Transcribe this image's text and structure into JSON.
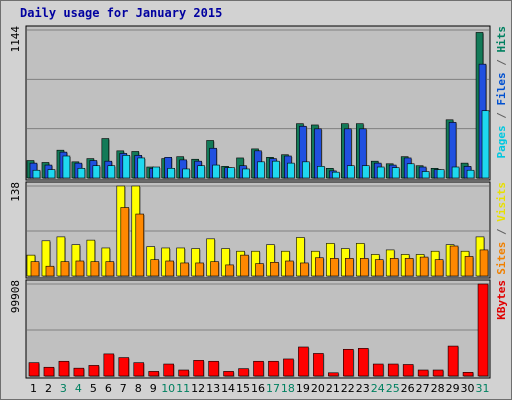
{
  "chart_data": {
    "type": "bar",
    "title": "Daily usage for January 2015",
    "categories": [
      "1",
      "2",
      "3",
      "4",
      "5",
      "6",
      "7",
      "8",
      "9",
      "10",
      "11",
      "12",
      "13",
      "14",
      "15",
      "16",
      "17",
      "18",
      "19",
      "20",
      "21",
      "22",
      "23",
      "24",
      "25",
      "26",
      "27",
      "28",
      "29",
      "30",
      "31"
    ],
    "weekend_days": [
      "3",
      "4",
      "10",
      "11",
      "17",
      "18",
      "24",
      "25",
      "31"
    ],
    "panels": [
      {
        "id": "hits",
        "ymax": 1144,
        "ytick": "1144",
        "right_labels": [
          {
            "text": "Pages",
            "color": "#00c8e0"
          },
          {
            "text": " / ",
            "color": "#606060"
          },
          {
            "text": "Files",
            "color": "#0050d0"
          },
          {
            "text": " / ",
            "color": "#606060"
          },
          {
            "text": "Hits",
            "color": "#008060"
          }
        ],
        "series": [
          {
            "name": "Hits",
            "color": "#137a58",
            "values": [
              135,
              120,
              215,
              125,
              150,
              305,
              210,
              205,
              85,
              150,
              165,
              145,
              290,
              90,
              155,
              225,
              160,
              180,
              420,
              410,
              75,
              420,
              420,
              130,
              110,
              165,
              95,
              75,
              450,
              115,
              1125
            ]
          },
          {
            "name": "Files",
            "color": "#2050e0",
            "values": [
              115,
              100,
              200,
              115,
              135,
              130,
              190,
              175,
              75,
              160,
              140,
              130,
              230,
              80,
              95,
              210,
              150,
              170,
              400,
              380,
              55,
              380,
              380,
              115,
              100,
              155,
              85,
              65,
              430,
              90,
              880
            ]
          },
          {
            "name": "Pages",
            "color": "#1ed8f0",
            "values": [
              60,
              65,
              170,
              75,
              95,
              95,
              175,
              155,
              85,
              75,
              70,
              95,
              100,
              80,
              70,
              125,
              130,
              115,
              125,
              90,
              45,
              95,
              95,
              85,
              80,
              110,
              50,
              65,
              85,
              60,
              520
            ]
          }
        ]
      },
      {
        "id": "visits",
        "ymax": 138,
        "ytick": "138",
        "right_labels": [
          {
            "text": "Sites",
            "color": "#f08000"
          },
          {
            "text": " / ",
            "color": "#606060"
          },
          {
            "text": "Visits",
            "color": "#e8e000"
          }
        ],
        "series": [
          {
            "name": "Visits",
            "color": "#ffff00",
            "values": [
              32,
              54,
              60,
              48,
              55,
              43,
              138,
              138,
              45,
              43,
              43,
              42,
              57,
              42,
              38,
              38,
              48,
              38,
              59,
              38,
              50,
              42,
              50,
              33,
              40,
              33,
              33,
              38,
              48,
              38,
              60
            ]
          },
          {
            "name": "Sites",
            "color": "#ff8800",
            "values": [
              22,
              15,
              22,
              23,
              22,
              22,
              105,
              95,
              25,
              23,
              20,
              20,
              22,
              17,
              32,
              19,
              21,
              23,
              20,
              28,
              27,
              27,
              27,
              25,
              27,
              27,
              29,
              25,
              46,
              30,
              40
            ]
          }
        ]
      },
      {
        "id": "kbytes",
        "ymax": 99908,
        "ytick": "99908",
        "right_labels": [
          {
            "text": "KBytes",
            "color": "#e00000"
          }
        ],
        "series": [
          {
            "name": "KBytes",
            "color": "#ff0000",
            "values": [
              14500,
              9500,
              16000,
              8500,
              11500,
              24000,
              20000,
              14500,
              5000,
              13000,
              6500,
              17000,
              16000,
              5000,
              8000,
              16000,
              16000,
              18500,
              31500,
              24500,
              3500,
              29000,
              30000,
              13000,
              13000,
              12500,
              6500,
              6500,
              32500,
              4000,
              99908
            ]
          }
        ]
      }
    ]
  }
}
